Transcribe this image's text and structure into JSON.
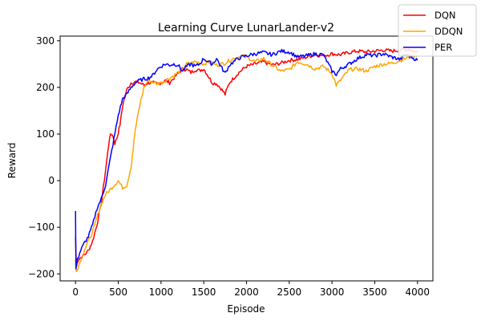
{
  "chart_data": {
    "type": "line",
    "title": "Learning Curve LunarLander-v2",
    "xlabel": "Episode",
    "ylabel": "Reward",
    "xlim": [
      -180,
      4180
    ],
    "ylim": [
      -215,
      310
    ],
    "xticks": [
      0,
      500,
      1000,
      1500,
      2000,
      2500,
      3000,
      3500,
      4000
    ],
    "yticks": [
      -200,
      -100,
      0,
      100,
      200,
      300
    ],
    "grid": false,
    "legend_position": "top-right",
    "series": [
      {
        "name": "DQN",
        "color": "#ff0000",
        "x": [
          0,
          10,
          30,
          60,
          100,
          150,
          200,
          250,
          300,
          350,
          400,
          430,
          460,
          490,
          520,
          560,
          600,
          650,
          700,
          750,
          800,
          850,
          900,
          950,
          1000,
          1050,
          1100,
          1150,
          1200,
          1250,
          1300,
          1350,
          1400,
          1450,
          1500,
          1550,
          1600,
          1650,
          1700,
          1750,
          1800,
          1850,
          1900,
          1950,
          2000,
          2100,
          2200,
          2300,
          2400,
          2500,
          2600,
          2700,
          2800,
          2900,
          3000,
          3100,
          3200,
          3300,
          3400,
          3500,
          3600,
          3700,
          3800,
          3900,
          4000
        ],
        "y": [
          -120,
          -185,
          -170,
          -165,
          -160,
          -150,
          -130,
          -95,
          -50,
          20,
          95,
          100,
          80,
          95,
          120,
          170,
          195,
          210,
          212,
          210,
          205,
          210,
          210,
          208,
          210,
          215,
          210,
          220,
          230,
          240,
          238,
          232,
          238,
          236,
          240,
          225,
          210,
          208,
          198,
          185,
          210,
          220,
          230,
          238,
          245,
          250,
          255,
          248,
          252,
          258,
          260,
          265,
          270,
          268,
          272,
          270,
          275,
          278,
          276,
          278,
          280,
          278,
          280,
          282,
          275
        ]
      },
      {
        "name": "DDQN",
        "color": "#ffa500",
        "x": [
          0,
          10,
          30,
          60,
          100,
          150,
          200,
          250,
          300,
          350,
          400,
          450,
          500,
          550,
          600,
          650,
          700,
          750,
          800,
          850,
          900,
          950,
          1000,
          1050,
          1100,
          1150,
          1200,
          1250,
          1300,
          1350,
          1400,
          1450,
          1500,
          1550,
          1600,
          1650,
          1700,
          1750,
          1800,
          1850,
          1900,
          1950,
          2000,
          2100,
          2200,
          2300,
          2400,
          2500,
          2600,
          2700,
          2800,
          2900,
          3000,
          3050,
          3100,
          3200,
          3300,
          3400,
          3500,
          3600,
          3700,
          3800,
          3900,
          4000
        ],
        "y": [
          -170,
          -195,
          -185,
          -170,
          -150,
          -130,
          -110,
          -80,
          -50,
          -30,
          -20,
          -10,
          0,
          -15,
          -10,
          30,
          110,
          160,
          200,
          215,
          212,
          208,
          210,
          215,
          220,
          225,
          232,
          240,
          250,
          252,
          255,
          253,
          250,
          255,
          252,
          248,
          250,
          252,
          258,
          262,
          265,
          268,
          265,
          255,
          262,
          248,
          235,
          238,
          255,
          250,
          240,
          245,
          230,
          205,
          215,
          238,
          240,
          235,
          245,
          250,
          252,
          258,
          265,
          270
        ]
      },
      {
        "name": "PER",
        "color": "#0000ff",
        "x": [
          0,
          5,
          15,
          30,
          60,
          100,
          150,
          200,
          250,
          300,
          350,
          400,
          450,
          500,
          550,
          600,
          650,
          700,
          750,
          800,
          850,
          900,
          950,
          1000,
          1050,
          1100,
          1150,
          1200,
          1250,
          1300,
          1350,
          1400,
          1450,
          1500,
          1550,
          1600,
          1650,
          1700,
          1750,
          1800,
          1850,
          1900,
          1950,
          2000,
          2100,
          2200,
          2300,
          2400,
          2500,
          2600,
          2700,
          2800,
          2900,
          3000,
          3050,
          3100,
          3200,
          3300,
          3400,
          3500,
          3600,
          3700,
          3800,
          3850,
          3900,
          4000
        ],
        "y": [
          -65,
          -190,
          -175,
          -165,
          -150,
          -135,
          -120,
          -95,
          -60,
          -40,
          -10,
          40,
          90,
          140,
          175,
          185,
          200,
          210,
          215,
          218,
          220,
          225,
          238,
          245,
          250,
          248,
          250,
          248,
          235,
          245,
          250,
          245,
          250,
          262,
          255,
          250,
          262,
          245,
          230,
          248,
          255,
          262,
          265,
          268,
          272,
          275,
          270,
          278,
          276,
          265,
          268,
          272,
          270,
          235,
          228,
          240,
          250,
          262,
          270,
          268,
          272,
          265,
          260,
          270,
          268,
          258
        ]
      }
    ]
  }
}
